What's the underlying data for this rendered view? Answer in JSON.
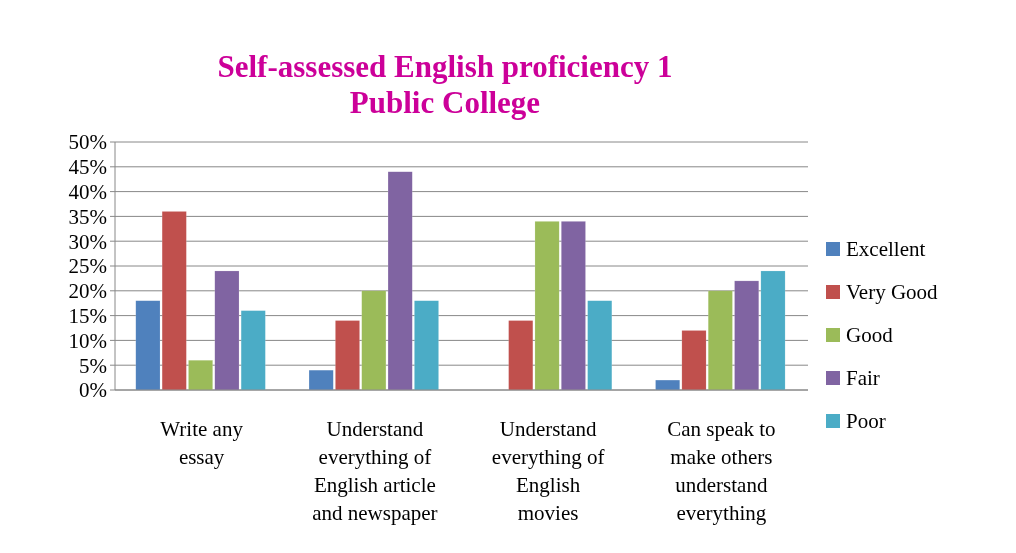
{
  "chart_data": {
    "type": "bar",
    "title": "Self-assessed English proficiency 1\nPublic College",
    "categories": [
      "Write any\nessay",
      "Understand\neverything of\nEnglish article\nand newspaper",
      "Understand\neverything of\nEnglish\nmovies",
      "Can speak to\nmake others\nunderstand\neverything"
    ],
    "series": [
      {
        "name": "Excellent",
        "color": "#4f81bd",
        "values": [
          18,
          4,
          0,
          2
        ]
      },
      {
        "name": "Very Good",
        "color": "#c0504d",
        "values": [
          36,
          14,
          14,
          12
        ]
      },
      {
        "name": "Good",
        "color": "#9bbb59",
        "values": [
          6,
          20,
          34,
          20
        ]
      },
      {
        "name": "Fair",
        "color": "#8064a2",
        "values": [
          24,
          44,
          34,
          22
        ]
      },
      {
        "name": "Poor",
        "color": "#4bacc6",
        "values": [
          16,
          18,
          18,
          24
        ]
      }
    ],
    "ylim": [
      0,
      50
    ],
    "yticks": [
      {
        "value": 0,
        "label": "0%"
      },
      {
        "value": 5,
        "label": "5%"
      },
      {
        "value": 10,
        "label": "10%"
      },
      {
        "value": 15,
        "label": "15%"
      },
      {
        "value": 20,
        "label": "20%"
      },
      {
        "value": 25,
        "label": "25%"
      },
      {
        "value": 30,
        "label": "30%"
      },
      {
        "value": 35,
        "label": "35%"
      },
      {
        "value": 40,
        "label": "40%"
      },
      {
        "value": 45,
        "label": "45%"
      },
      {
        "value": 50,
        "label": "50%"
      }
    ],
    "grid": "y",
    "legend": "right"
  }
}
